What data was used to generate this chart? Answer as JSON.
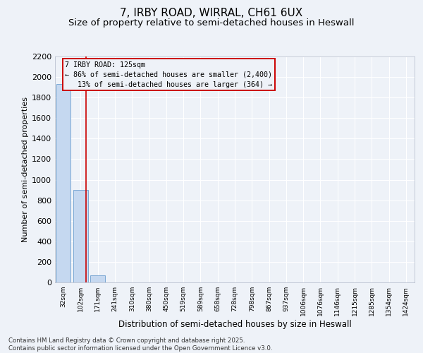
{
  "title": "7, IRBY ROAD, WIRRAL, CH61 6UX",
  "subtitle": "Size of property relative to semi-detached houses in Heswall",
  "xlabel": "Distribution of semi-detached houses by size in Heswall",
  "ylabel": "Number of semi-detached properties",
  "categories": [
    "32sqm",
    "102sqm",
    "171sqm",
    "241sqm",
    "310sqm",
    "380sqm",
    "450sqm",
    "519sqm",
    "589sqm",
    "658sqm",
    "728sqm",
    "798sqm",
    "867sqm",
    "937sqm",
    "1006sqm",
    "1076sqm",
    "1146sqm",
    "1215sqm",
    "1285sqm",
    "1354sqm",
    "1424sqm"
  ],
  "values": [
    1930,
    900,
    70,
    0,
    0,
    0,
    0,
    0,
    0,
    0,
    0,
    0,
    0,
    0,
    0,
    0,
    0,
    0,
    0,
    0,
    0
  ],
  "bar_color": "#c5d8f0",
  "bar_edge_color": "#7ba8d4",
  "vline_x": 1.33,
  "vline_color": "#cc0000",
  "annotation_line1": "7 IRBY ROAD: 125sqm",
  "annotation_line2": "← 86% of semi-detached houses are smaller (2,400)",
  "annotation_line3": "   13% of semi-detached houses are larger (364) →",
  "annotation_box_color": "#cc0000",
  "ylim": [
    0,
    2200
  ],
  "yticks": [
    0,
    200,
    400,
    600,
    800,
    1000,
    1200,
    1400,
    1600,
    1800,
    2000,
    2200
  ],
  "background_color": "#eef2f8",
  "grid_color": "#ffffff",
  "footer": "Contains HM Land Registry data © Crown copyright and database right 2025.\nContains public sector information licensed under the Open Government Licence v3.0.",
  "title_fontsize": 11,
  "subtitle_fontsize": 9.5
}
